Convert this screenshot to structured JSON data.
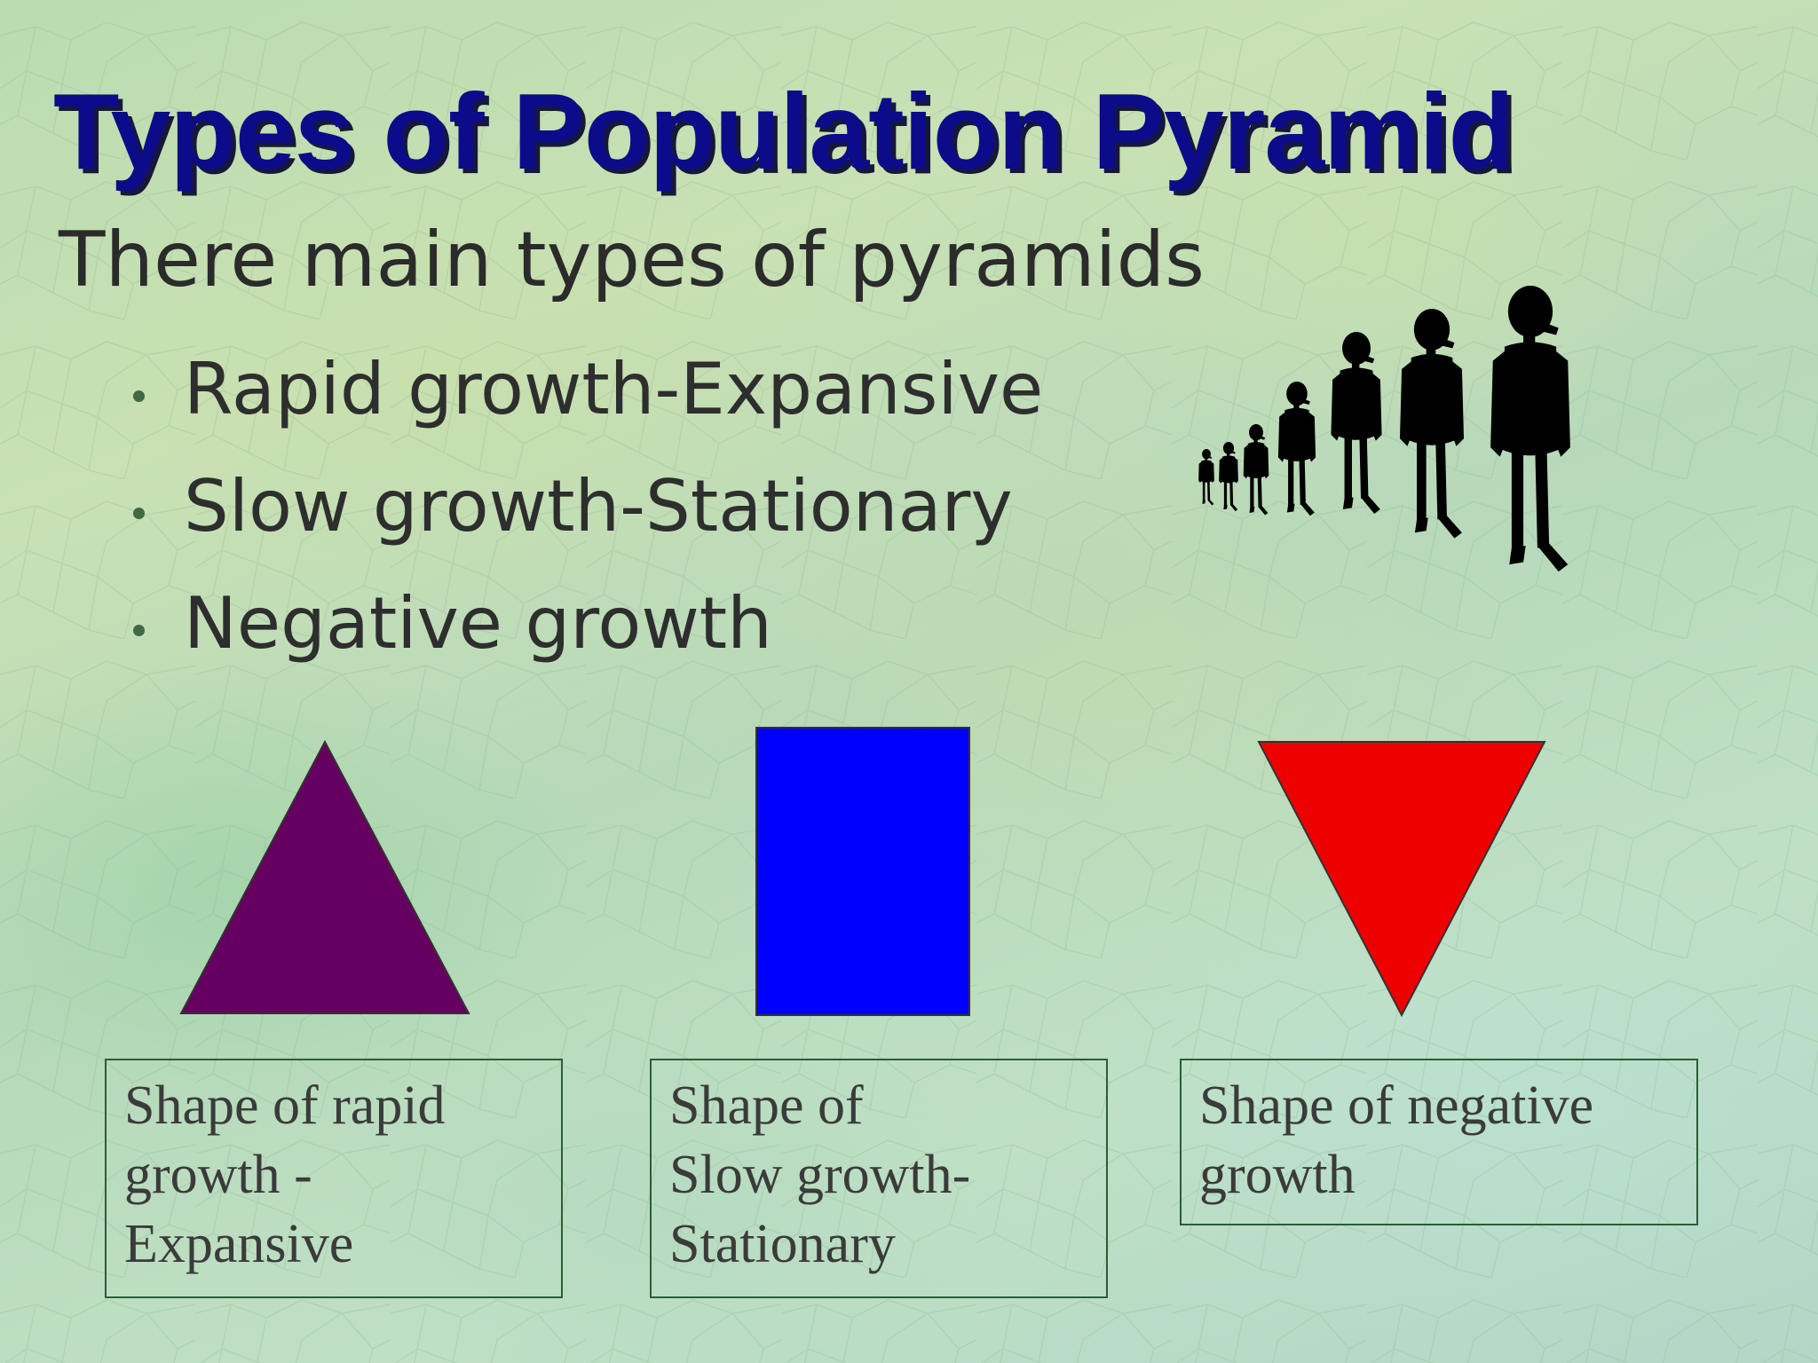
{
  "slide": {
    "title": "Types of Population Pyramid",
    "subtitle": "There main types of pyramids",
    "bullets": [
      "Rapid growth-Expansive",
      "Slow growth-Stationary",
      "Negative growth"
    ],
    "captions": [
      {
        "lines": [
          "Shape of rapid",
          "growth -",
          "Expansive"
        ]
      },
      {
        "lines": [
          "Shape of",
          "Slow growth-",
          "Stationary"
        ]
      },
      {
        "lines": [
          "Shape of negative",
          "growth"
        ]
      }
    ]
  },
  "colors": {
    "title": "#0c0c8a",
    "expansive_shape": "#650060",
    "stationary_shape": "#0000ff",
    "negative_shape": "#ee0000",
    "caption_border": "#2a5e36"
  },
  "icons": {
    "figures": "people-silhouettes-icon",
    "expansive": "triangle-up-icon",
    "stationary": "rectangle-icon",
    "negative": "triangle-down-icon"
  }
}
